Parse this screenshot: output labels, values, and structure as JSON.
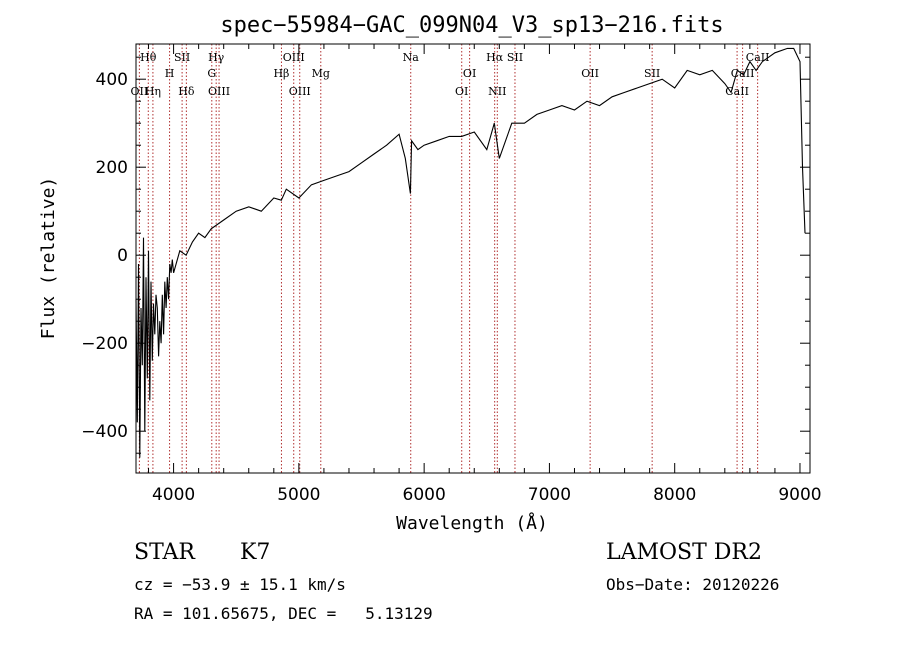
{
  "chart_data": {
    "type": "line",
    "title": "spec−55984−GAC_099N04_V3_sp13−216.fits",
    "xlabel": "Wavelength (Å)",
    "ylabel": "Flux (relative)",
    "xlim": [
      3700,
      9080
    ],
    "ylim": [
      -495,
      480
    ],
    "xticks": [
      4000,
      5000,
      6000,
      7000,
      8000,
      9000
    ],
    "yticks": [
      -400,
      -200,
      0,
      200,
      400
    ],
    "ytick_labels": [
      "−400",
      "−200",
      "0",
      "200",
      "400"
    ],
    "grid": false,
    "series": [
      {
        "x": [
          3700,
          3710,
          3720,
          3730,
          3740,
          3750,
          3760,
          3770,
          3780,
          3790,
          3800,
          3810,
          3820,
          3830,
          3840,
          3850,
          3860,
          3870,
          3880,
          3890,
          3900,
          3910,
          3920,
          3930,
          3940,
          3950,
          3960,
          3970,
          3980,
          3990,
          4000,
          4050,
          4100,
          4150,
          4200,
          4250,
          4300,
          4400,
          4500,
          4600,
          4700,
          4800,
          4860,
          4900,
          5000,
          5100,
          5200,
          5300,
          5400,
          5500,
          5600,
          5700,
          5800,
          5850,
          5890,
          5900,
          5950,
          6000,
          6100,
          6200,
          6300,
          6400,
          6500,
          6560,
          6600,
          6700,
          6800,
          6900,
          7000,
          7100,
          7200,
          7300,
          7400,
          7500,
          7600,
          7700,
          7800,
          7900,
          8000,
          8100,
          8200,
          8300,
          8400,
          8450,
          8500,
          8550,
          8600,
          8650,
          8700,
          8800,
          8900,
          8950,
          9000,
          9020,
          9040
        ],
        "y": [
          -100,
          -380,
          -20,
          -460,
          -120,
          -250,
          40,
          -400,
          -50,
          -280,
          10,
          -330,
          -60,
          -240,
          -110,
          -180,
          -90,
          -120,
          -230,
          -150,
          -200,
          -90,
          -180,
          -60,
          -120,
          -50,
          -100,
          -20,
          -40,
          -10,
          -40,
          10,
          0,
          30,
          50,
          40,
          60,
          80,
          100,
          110,
          100,
          130,
          125,
          150,
          130,
          160,
          170,
          180,
          190,
          210,
          230,
          250,
          275,
          220,
          140,
          260,
          240,
          250,
          260,
          270,
          270,
          280,
          240,
          300,
          220,
          300,
          300,
          320,
          330,
          340,
          330,
          350,
          340,
          360,
          370,
          380,
          390,
          400,
          380,
          420,
          410,
          420,
          390,
          370,
          420,
          410,
          440,
          420,
          440,
          460,
          470,
          470,
          440,
          200,
          50
        ],
        "color": "#000000"
      }
    ],
    "line_markers": [
      {
        "label": "Hθ",
        "x": 3798,
        "row": 0
      },
      {
        "label": "OII",
        "x": 3727,
        "row": 2
      },
      {
        "label": "Hη",
        "x": 3835,
        "row": 2
      },
      {
        "label": "H",
        "x": 3968,
        "row": 1
      },
      {
        "label": "SII",
        "x": 4068,
        "row": 0
      },
      {
        "label": "Hδ",
        "x": 4102,
        "row": 2
      },
      {
        "label": "Hγ",
        "x": 4340,
        "row": 0
      },
      {
        "label": "G",
        "x": 4305,
        "row": 1
      },
      {
        "label": "OIII",
        "x": 4363,
        "row": 2
      },
      {
        "label": "Hβ",
        "x": 4861,
        "row": 1
      },
      {
        "label": "OIII",
        "x": 4959,
        "row": 0
      },
      {
        "label": "OIII",
        "x": 5007,
        "row": 2
      },
      {
        "label": "Mg",
        "x": 5175,
        "row": 1
      },
      {
        "label": "Na",
        "x": 5893,
        "row": 0
      },
      {
        "label": "OI",
        "x": 6363,
        "row": 1
      },
      {
        "label": "OI",
        "x": 6300,
        "row": 2
      },
      {
        "label": "Hα",
        "x": 6563,
        "row": 0
      },
      {
        "label": "NII",
        "x": 6584,
        "row": 2
      },
      {
        "label": "SII",
        "x": 6725,
        "row": 0
      },
      {
        "label": "OII",
        "x": 7325,
        "row": 1
      },
      {
        "label": "SII",
        "x": 7820,
        "row": 1
      },
      {
        "label": "CaII",
        "x": 8662,
        "row": 0
      },
      {
        "label": "CaII",
        "x": 8542,
        "row": 1
      },
      {
        "label": "CaII",
        "x": 8498,
        "row": 2
      }
    ]
  },
  "info": {
    "object_type": "STAR",
    "subclass": "K7",
    "velocity": "cz = −53.9 ± 15.1 km/s",
    "coords": "RA = 101.65675, DEC =   5.13129",
    "survey": "LAMOST DR2",
    "obs_date": "Obs−Date: 20120226"
  }
}
